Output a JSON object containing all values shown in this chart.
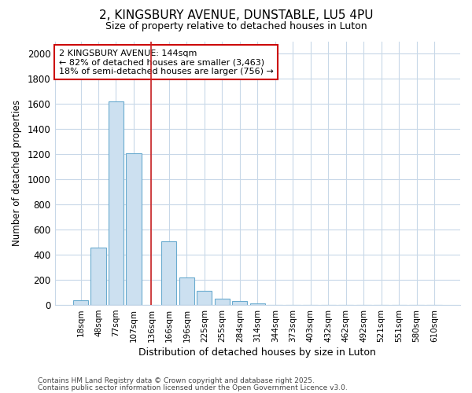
{
  "title1": "2, KINGSBURY AVENUE, DUNSTABLE, LU5 4PU",
  "title2": "Size of property relative to detached houses in Luton",
  "xlabel": "Distribution of detached houses by size in Luton",
  "ylabel": "Number of detached properties",
  "categories": [
    "18sqm",
    "48sqm",
    "77sqm",
    "107sqm",
    "136sqm",
    "166sqm",
    "196sqm",
    "225sqm",
    "255sqm",
    "284sqm",
    "314sqm",
    "344sqm",
    "373sqm",
    "403sqm",
    "432sqm",
    "462sqm",
    "492sqm",
    "521sqm",
    "551sqm",
    "580sqm",
    "610sqm"
  ],
  "values": [
    35,
    460,
    1620,
    1210,
    0,
    510,
    220,
    115,
    50,
    30,
    15,
    0,
    0,
    0,
    0,
    0,
    0,
    0,
    0,
    0,
    0
  ],
  "bar_color": "#cce0f0",
  "bar_edge_color": "#6aabcf",
  "red_line_x": 4,
  "annotation_title": "2 KINGSBURY AVENUE: 144sqm",
  "annotation_line1": "← 82% of detached houses are smaller (3,463)",
  "annotation_line2": "18% of semi-detached houses are larger (756) →",
  "annotation_box_color": "#ffffff",
  "annotation_box_edge": "#cc0000",
  "red_line_color": "#cc2222",
  "ylim": [
    0,
    2100
  ],
  "yticks": [
    0,
    200,
    400,
    600,
    800,
    1000,
    1200,
    1400,
    1600,
    1800,
    2000
  ],
  "footer1": "Contains HM Land Registry data © Crown copyright and database right 2025.",
  "footer2": "Contains public sector information licensed under the Open Government Licence v3.0.",
  "bg_color": "#ffffff",
  "grid_color": "#c8d8e8"
}
